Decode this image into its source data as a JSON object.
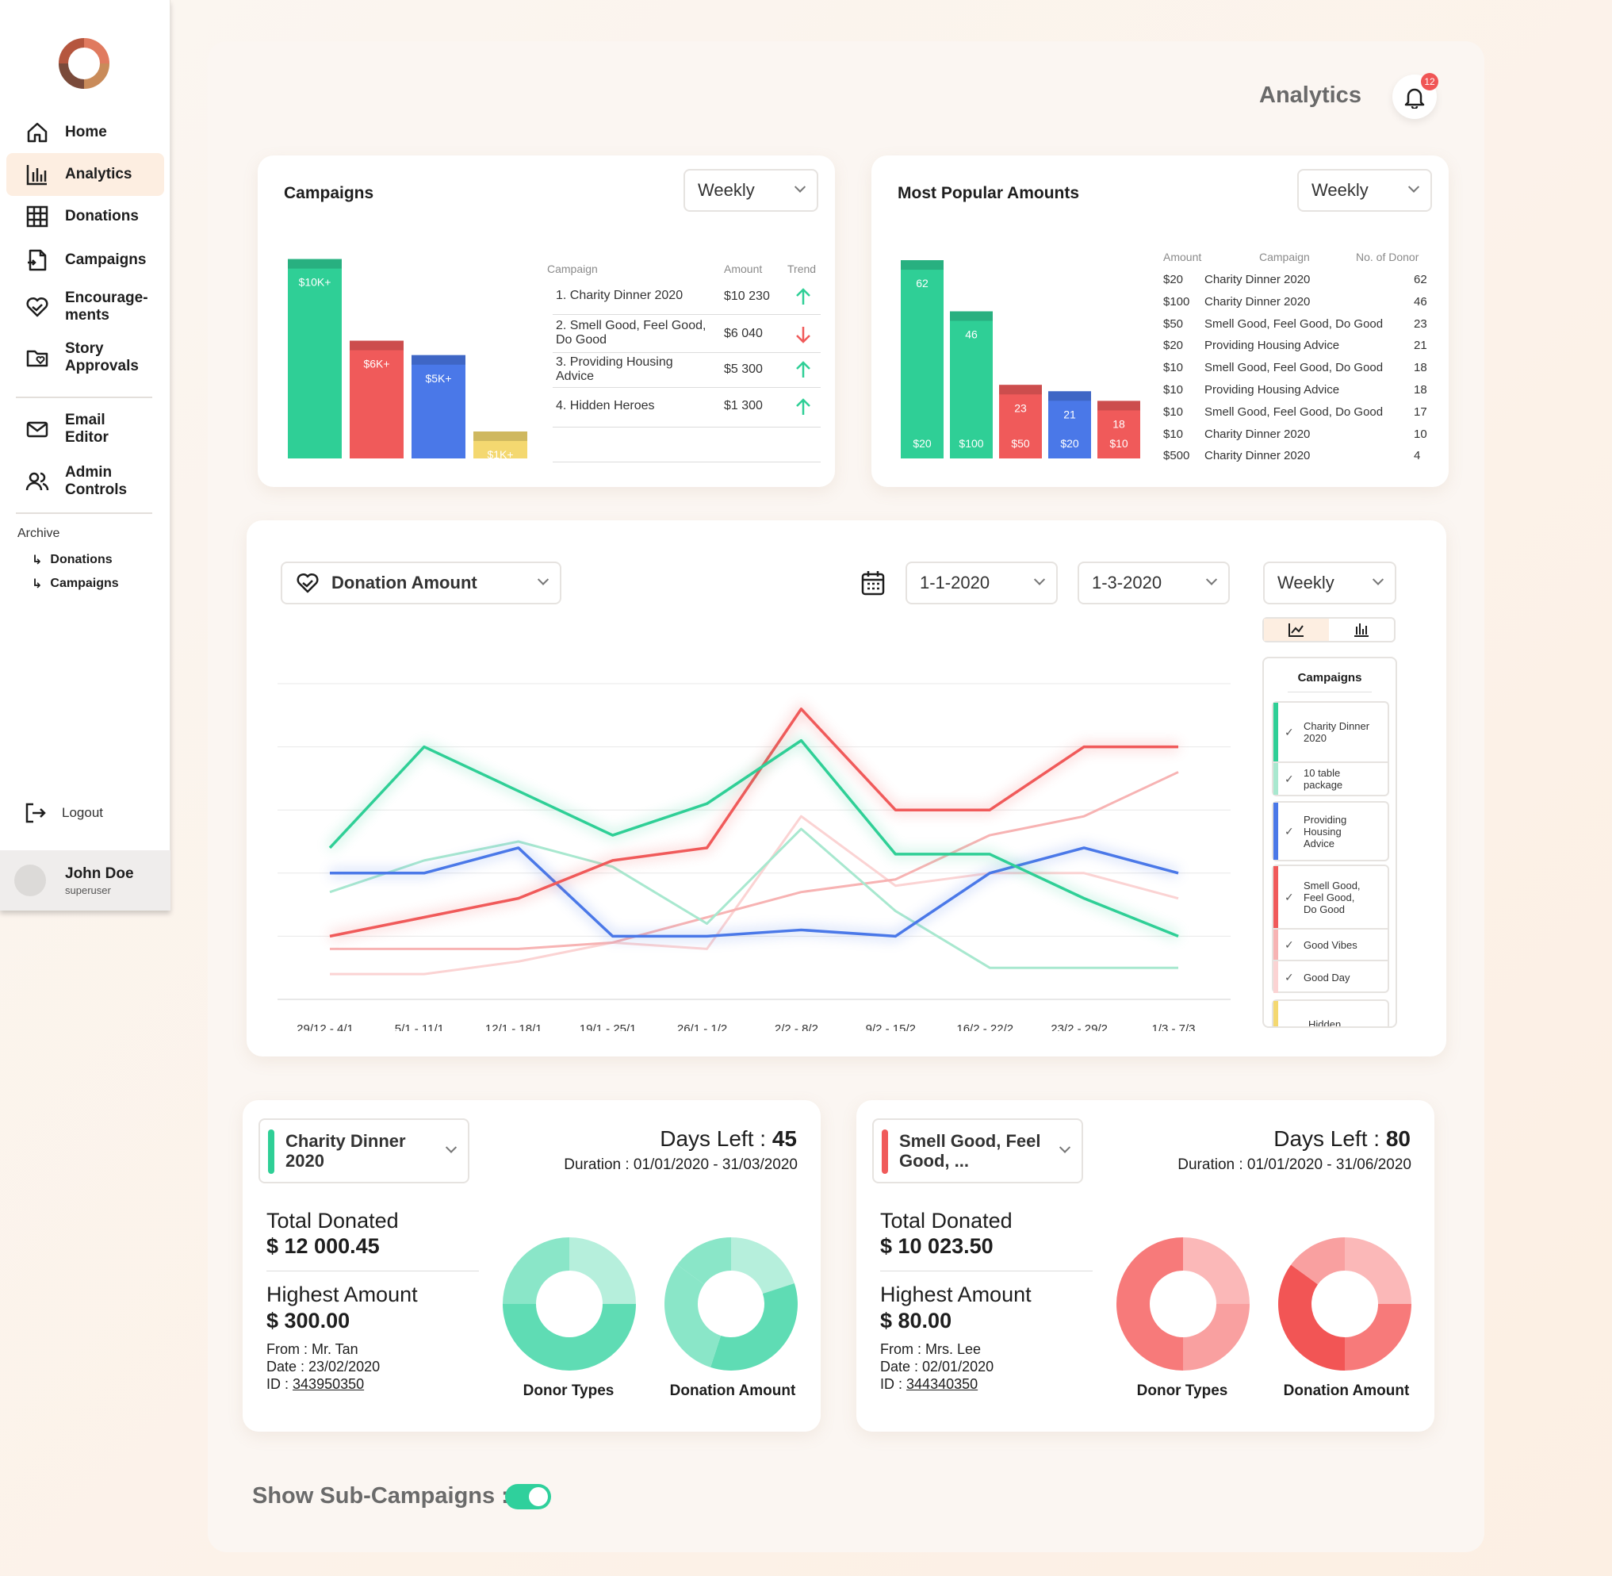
{
  "sidebar": {
    "items": [
      {
        "label": "Home",
        "icon": "home-icon"
      },
      {
        "label": "Analytics",
        "icon": "bar-chart-icon"
      },
      {
        "label": "Donations",
        "icon": "grid-icon"
      },
      {
        "label": "Campaigns",
        "icon": "document-icon"
      },
      {
        "label": "Encourage-\nments",
        "icon": "heart-hands-icon"
      },
      {
        "label": "Story\nApprovals",
        "icon": "folder-heart-icon"
      },
      {
        "label": "Email\nEditor",
        "icon": "mail-icon"
      },
      {
        "label": "Admin\nControls",
        "icon": "users-icon"
      }
    ],
    "archive_title": "Archive",
    "archive_items": [
      "Donations",
      "Campaigns"
    ],
    "logout": "Logout",
    "user": {
      "name": "John Doe",
      "role": "superuser"
    }
  },
  "header": {
    "title": "Analytics",
    "notification_count": "12"
  },
  "campaigns_card": {
    "title": "Campaigns",
    "filter": "Weekly",
    "table_headers": {
      "campaign": "Campaign",
      "amount": "Amount",
      "trend": "Trend"
    },
    "rows": [
      {
        "name": "1. Charity Dinner 2020",
        "amount": "$10 230",
        "trend": "up"
      },
      {
        "name": "2. Smell Good, Feel Good, Do Good",
        "amount": "$6 040",
        "trend": "down"
      },
      {
        "name": "3. Providing Housing Advice",
        "amount": "$5 300",
        "trend": "up"
      },
      {
        "name": "4. Hidden Heroes",
        "amount": "$1 300",
        "trend": "up"
      }
    ]
  },
  "popular_card": {
    "title": "Most Popular Amounts",
    "filter": "Weekly",
    "table_headers": {
      "amount": "Amount",
      "campaign": "Campaign",
      "donors": "No. of Donor"
    },
    "rows": [
      {
        "amount": "$20",
        "campaign": "Charity Dinner 2020",
        "donors": "62"
      },
      {
        "amount": "$100",
        "campaign": "Charity Dinner 2020",
        "donors": "46"
      },
      {
        "amount": "$50",
        "campaign": "Smell Good, Feel Good, Do Good",
        "donors": "23"
      },
      {
        "amount": "$20",
        "campaign": "Providing Housing Advice",
        "donors": "21"
      },
      {
        "amount": "$10",
        "campaign": "Smell Good, Feel Good, Do Good",
        "donors": "18"
      },
      {
        "amount": "$10",
        "campaign": "Providing Housing Advice",
        "donors": "18"
      },
      {
        "amount": "$10",
        "campaign": "Smell Good, Feel Good, Do Good",
        "donors": "17"
      },
      {
        "amount": "$10",
        "campaign": "Charity Dinner 2020",
        "donors": "10"
      },
      {
        "amount": "$500",
        "campaign": "Charity Dinner 2020",
        "donors": "4"
      }
    ]
  },
  "line_card": {
    "metric": "Donation Amount",
    "date_from": "1-1-2020",
    "date_to": "1-3-2020",
    "period": "Weekly",
    "legend_title": "Campaigns",
    "legend": [
      {
        "label": "Charity Dinner 2020",
        "color": "#2fcf96"
      },
      {
        "label": "10 table package",
        "color": "#a8e8cf"
      },
      {
        "label": "Providing Housing Advice",
        "color": "#4a78e8"
      },
      {
        "label": "Smell Good, Feel Good, Do Good",
        "color": "#f05a5a"
      },
      {
        "label": "Good Vibes",
        "color": "#f7b3b3"
      },
      {
        "label": "Good Day",
        "color": "#fbd3d3"
      },
      {
        "label": "Hidden",
        "color": "#f4d870"
      }
    ]
  },
  "campaign_summaries": [
    {
      "selector": "Charity Dinner 2020",
      "color": "#2fcf96",
      "days_left_label": "Days Left :",
      "days_left": "45",
      "duration": "Duration : 01/01/2020 - 31/03/2020",
      "total_label": "Total Donated",
      "total": "$ 12 000.45",
      "highest_label": "Highest Amount",
      "highest": "$ 300.00",
      "from": "From : Mr. Tan",
      "date": "Date  : 23/02/2020",
      "id_label": "ID :",
      "id": "343950350",
      "donut1_label": "Donor Types",
      "donut2_label": "Donation Amount"
    },
    {
      "selector": "Smell Good, Feel Good, ...",
      "color": "#f05a5a",
      "days_left_label": "Days Left :",
      "days_left": "80",
      "duration": "Duration : 01/01/2020 - 31/06/2020",
      "total_label": "Total Donated",
      "total": "$ 10 023.50",
      "highest_label": "Highest Amount",
      "highest": "$ 80.00",
      "from": "From : Mrs. Lee",
      "date": "Date  : 02/01/2020",
      "id_label": "ID :",
      "id": "344340350",
      "donut1_label": "Donor Types",
      "donut2_label": "Donation Amount"
    }
  ],
  "footer": {
    "show_sub_label": "Show Sub-Campaigns :",
    "show_sub_on": true
  },
  "chart_data": [
    {
      "type": "bar",
      "categories": [
        "$10K+",
        "$6K+",
        "$5K+",
        "$1K+"
      ],
      "values": [
        10230,
        6040,
        5300,
        1300
      ],
      "colors": [
        "#2fcf96",
        "#f05a5a",
        "#4a78e8",
        "#f4d870"
      ],
      "ylim": [
        0,
        10500
      ]
    },
    {
      "type": "bar",
      "categories": [
        "$20",
        "$100",
        "$50",
        "$20",
        "$10"
      ],
      "values": [
        62,
        46,
        23,
        21,
        18
      ],
      "colors": [
        "#2fcf96",
        "#2fcf96",
        "#f05a5a",
        "#4a78e8",
        "#f05a5a"
      ],
      "ylim": [
        0,
        64
      ]
    },
    {
      "type": "line",
      "x": [
        "29/12 - 4/1",
        "5/1 - 11/1",
        "12/1 - 18/1",
        "19/1 - 25/1",
        "26/1 - 1/2",
        "2/2 - 8/2",
        "9/2 - 15/2",
        "16/2 - 22/2",
        "23/2 - 29/2",
        "1/3 - 7/3"
      ],
      "ylim": [
        0,
        5
      ],
      "grid": true,
      "series": [
        {
          "name": "Charity Dinner 2020",
          "color": "#2fcf96",
          "values": [
            2.4,
            4.0,
            3.3,
            2.6,
            3.1,
            4.1,
            2.3,
            2.3,
            1.6,
            1.0
          ]
        },
        {
          "name": "10 table package",
          "color": "#a8e8cf",
          "values": [
            1.7,
            2.2,
            2.5,
            2.1,
            1.2,
            2.7,
            1.4,
            0.5,
            0.5,
            0.5
          ]
        },
        {
          "name": "Providing Housing Advice",
          "color": "#4a78e8",
          "values": [
            2.0,
            2.0,
            2.4,
            1.0,
            1.0,
            1.1,
            1.0,
            2.0,
            2.4,
            2.0
          ]
        },
        {
          "name": "Smell Good, Feel Good, Do Good",
          "color": "#f05a5a",
          "values": [
            1.0,
            1.3,
            1.6,
            2.2,
            2.4,
            4.6,
            3.0,
            3.0,
            4.0,
            4.0
          ]
        },
        {
          "name": "Good Vibes",
          "color": "#f7b3b3",
          "values": [
            0.8,
            0.8,
            0.8,
            0.9,
            1.3,
            1.7,
            1.9,
            2.6,
            2.9,
            3.6
          ]
        },
        {
          "name": "Good Day",
          "color": "#fbd3d3",
          "values": [
            0.4,
            0.4,
            0.6,
            0.9,
            0.8,
            2.9,
            1.8,
            2.0,
            2.0,
            1.6
          ]
        }
      ]
    },
    {
      "type": "pie",
      "title": "Donor Types",
      "values": [
        25,
        50,
        25
      ],
      "colors": [
        "#b6efdc",
        "#5fdcb4",
        "#8ae6c8"
      ]
    },
    {
      "type": "pie",
      "title": "Donation Amount",
      "values": [
        20,
        35,
        30,
        15
      ],
      "colors": [
        "#b6efdc",
        "#5fdcb4",
        "#8ae6c8",
        "#8ae6c8"
      ]
    },
    {
      "type": "pie",
      "title": "Donor Types",
      "values": [
        25,
        25,
        50
      ],
      "colors": [
        "#fbb8b8",
        "#f9a0a0",
        "#f77a7a"
      ]
    },
    {
      "type": "pie",
      "title": "Donation Amount",
      "values": [
        25,
        25,
        35,
        15
      ],
      "colors": [
        "#fbb8b8",
        "#f77a7a",
        "#f25555",
        "#f9a0a0"
      ]
    }
  ]
}
